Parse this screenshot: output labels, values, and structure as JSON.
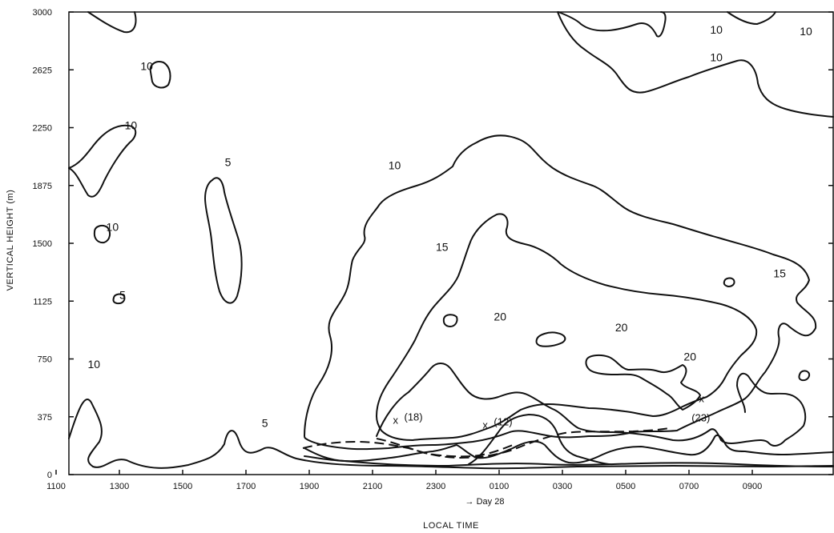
{
  "chart_data": {
    "type": "contour",
    "xlabel": "LOCAL TIME",
    "ylabel": "VERTICAL HEIGHT (m)",
    "day_marker": "→ Day 28",
    "x_tick_labels": [
      "1300",
      "1500",
      "1700",
      "1900",
      "2100",
      "2300",
      "0100",
      "0300",
      "0500",
      "0700",
      "0900",
      "1100"
    ],
    "y_tick_labels": [
      "0",
      "375",
      "750",
      "1125",
      "1500",
      "1875",
      "2250",
      "2625",
      "3000"
    ],
    "ylim": [
      0,
      3000
    ],
    "contour_levels": [
      5,
      10,
      15,
      20
    ],
    "contour_labels": [
      {
        "text": "10",
        "time": "1340",
        "height": 2625
      },
      {
        "text": "10",
        "time": "1310",
        "height": 2240
      },
      {
        "text": "5",
        "time": "1620",
        "height": 2000
      },
      {
        "text": "10",
        "time": "1235",
        "height": 1580
      },
      {
        "text": "5",
        "time": "1300",
        "height": 1140
      },
      {
        "text": "5",
        "time": "1730",
        "height": 310
      },
      {
        "text": "10",
        "time": "0740",
        "height": 2860
      },
      {
        "text": "10",
        "time": "1030",
        "height": 2850
      },
      {
        "text": "10",
        "time": "0740",
        "height": 2680
      },
      {
        "text": "10",
        "time": "2130",
        "height": 1980
      },
      {
        "text": "15",
        "time": "2300",
        "height": 1450
      },
      {
        "text": "15",
        "time": "0940",
        "height": 1280
      },
      {
        "text": "20",
        "time": "0050",
        "height": 1000
      },
      {
        "text": "20",
        "time": "0440",
        "height": 930
      },
      {
        "text": "20",
        "time": "0650",
        "height": 740
      },
      {
        "text": "10",
        "time": "1200",
        "height": 690
      }
    ],
    "markers": [
      {
        "label": "x",
        "value": "(18)",
        "time": "2200",
        "height": 350
      },
      {
        "label": "x",
        "value": "(12)",
        "time": "0050",
        "height": 320
      },
      {
        "label": "x",
        "value": "(23)",
        "time": "0740",
        "height": 490
      }
    ],
    "dashed_line": "boundary"
  }
}
